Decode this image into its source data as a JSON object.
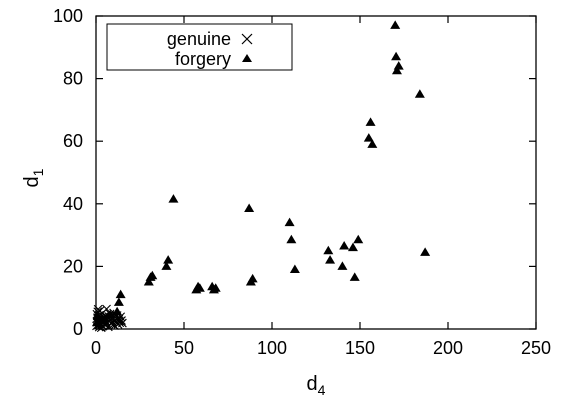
{
  "chart_data": {
    "type": "scatter",
    "xlabel": {
      "base": "d",
      "sub": "4"
    },
    "ylabel": {
      "base": "d",
      "sub": "1"
    },
    "xlim": [
      0,
      250
    ],
    "ylim": [
      0,
      100
    ],
    "xticks": [
      "0",
      "50",
      "100",
      "150",
      "200",
      "250"
    ],
    "yticks": [
      "0",
      "20",
      "40",
      "60",
      "80",
      "100"
    ],
    "grid": false,
    "legend_position": "top-left",
    "series": [
      {
        "name": "genuine",
        "marker": "x",
        "color": "#000000",
        "points": [
          [
            0.3,
            1.0
          ],
          [
            0.6,
            2.2
          ],
          [
            0.8,
            3.6
          ],
          [
            1.0,
            5.5
          ],
          [
            1.2,
            6.3
          ],
          [
            1.5,
            2.8
          ],
          [
            1.8,
            0.6
          ],
          [
            2.0,
            4.4
          ],
          [
            2.4,
            1.6
          ],
          [
            2.8,
            3.2
          ],
          [
            3.2,
            2.1
          ],
          [
            3.6,
            5.0
          ],
          [
            4.0,
            0.9
          ],
          [
            4.4,
            3.9
          ],
          [
            4.8,
            2.5
          ],
          [
            5.2,
            1.3
          ],
          [
            5.6,
            4.2
          ],
          [
            6.0,
            6.4
          ],
          [
            6.5,
            3.0
          ],
          [
            7.0,
            0.7
          ],
          [
            7.5,
            2.6
          ],
          [
            8.0,
            4.8
          ],
          [
            8.5,
            1.8
          ],
          [
            9.0,
            3.4
          ],
          [
            9.5,
            2.2
          ],
          [
            10.0,
            5.1
          ],
          [
            10.5,
            1.1
          ],
          [
            11.0,
            3.7
          ],
          [
            11.5,
            2.4
          ],
          [
            12.0,
            4.3
          ],
          [
            12.5,
            1.5
          ],
          [
            13.0,
            3.1
          ],
          [
            13.5,
            2.0
          ],
          [
            14.0,
            3.9
          ],
          [
            14.5,
            2.7
          ],
          [
            15.0,
            1.9
          ],
          [
            0.5,
            4.7
          ],
          [
            1.4,
            1.2
          ],
          [
            2.2,
            5.8
          ],
          [
            3.0,
            0.4
          ],
          [
            4.2,
            2.9
          ],
          [
            5.0,
            3.5
          ],
          [
            6.2,
            1.7
          ],
          [
            7.2,
            4.0
          ],
          [
            8.2,
            2.9
          ],
          [
            9.8,
            1.4
          ],
          [
            11.8,
            3.2
          ],
          [
            13.2,
            2.6
          ]
        ]
      },
      {
        "name": "forgery",
        "marker": "triangle",
        "color": "#000000",
        "points": [
          [
            0.5,
            2.0
          ],
          [
            1.0,
            4.0
          ],
          [
            2.0,
            1.5
          ],
          [
            3.5,
            3.2
          ],
          [
            5.0,
            2.5
          ],
          [
            8.0,
            4.5
          ],
          [
            12.0,
            5.5
          ],
          [
            13.0,
            8.5
          ],
          [
            14.0,
            11.0
          ],
          [
            30.0,
            15.0
          ],
          [
            31.0,
            16.5
          ],
          [
            32.0,
            17.0
          ],
          [
            40.0,
            20.0
          ],
          [
            41.0,
            22.0
          ],
          [
            44.0,
            41.5
          ],
          [
            57.0,
            12.5
          ],
          [
            58.0,
            13.5
          ],
          [
            59.0,
            13.0
          ],
          [
            66.0,
            13.5
          ],
          [
            67.0,
            12.5
          ],
          [
            68.0,
            13.0
          ],
          [
            87.0,
            38.5
          ],
          [
            88.0,
            15.0
          ],
          [
            89.0,
            16.0
          ],
          [
            110.0,
            34.0
          ],
          [
            111.0,
            28.5
          ],
          [
            113.0,
            19.0
          ],
          [
            132.0,
            25.0
          ],
          [
            133.0,
            22.0
          ],
          [
            140.0,
            20.0
          ],
          [
            141.0,
            26.5
          ],
          [
            146.0,
            26.0
          ],
          [
            147.0,
            16.5
          ],
          [
            149.0,
            28.5
          ],
          [
            155.0,
            61.0
          ],
          [
            156.0,
            66.0
          ],
          [
            157.0,
            59.0
          ],
          [
            170.0,
            97.0
          ],
          [
            170.5,
            87.0
          ],
          [
            171.0,
            82.5
          ],
          [
            172.0,
            84.0
          ],
          [
            184.0,
            75.0
          ],
          [
            187.0,
            24.5
          ]
        ]
      }
    ]
  }
}
